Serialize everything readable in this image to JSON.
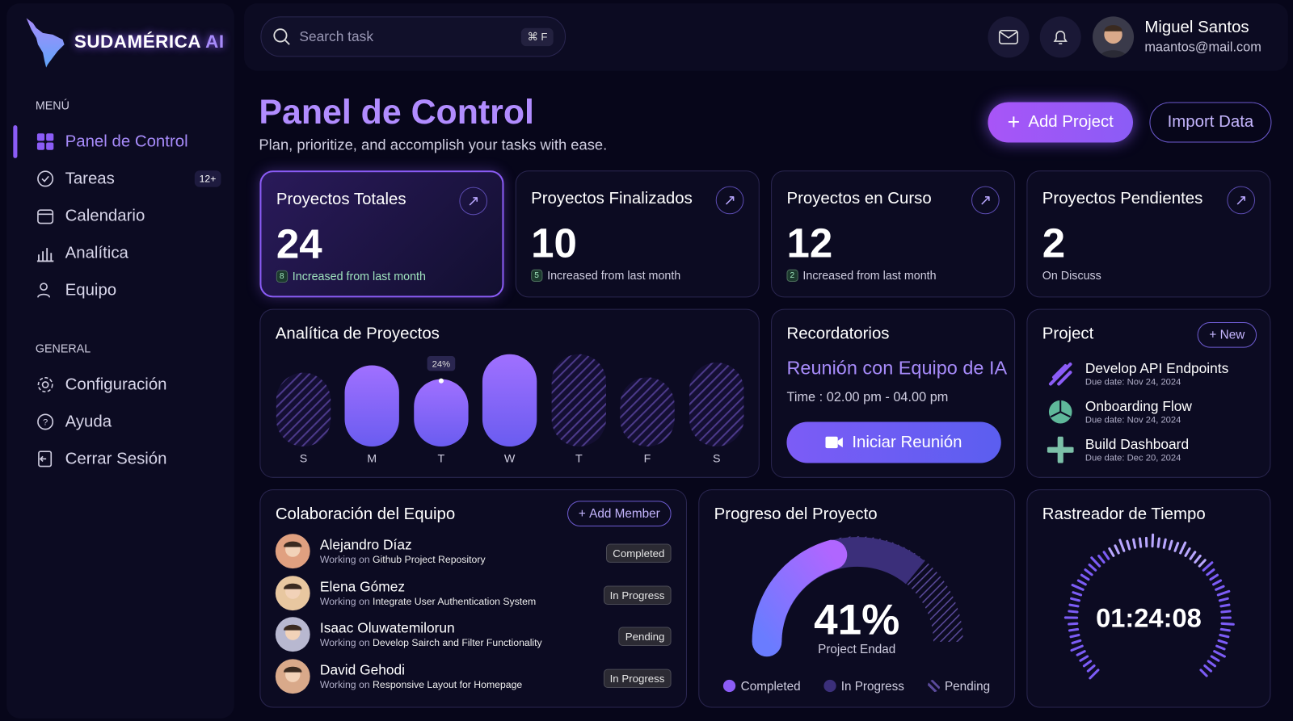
{
  "brand": {
    "name": "SUDAMÉRICA",
    "suffix": "AI"
  },
  "sidebar": {
    "menu_label": "MENÚ",
    "items": [
      {
        "label": "Panel de Control",
        "icon": "grid-icon",
        "active": true
      },
      {
        "label": "Tareas",
        "icon": "tasks-icon",
        "badge": "12+"
      },
      {
        "label": "Calendario",
        "icon": "calendar-icon"
      },
      {
        "label": "Analítica",
        "icon": "bar-chart-icon"
      },
      {
        "label": "Equipo",
        "icon": "users-icon"
      }
    ],
    "general_label": "GENERAL",
    "general": [
      {
        "label": "Configuración",
        "icon": "gear-icon"
      },
      {
        "label": "Ayuda",
        "icon": "help-icon"
      },
      {
        "label": "Cerrar Sesión",
        "icon": "logout-icon"
      }
    ]
  },
  "topbar": {
    "search_placeholder": "Search task",
    "shortcut": "⌘ F",
    "user": {
      "name": "Miguel Santos",
      "email": "maantos@mail.com"
    }
  },
  "header": {
    "title": "Panel de Control",
    "subtitle": "Plan, prioritize, and accomplish your tasks with ease.",
    "add_project": "Add Project",
    "import_data": "Import Data"
  },
  "stats": [
    {
      "title": "Proyectos Totales",
      "value": "24",
      "badge": "8",
      "note": "Increased from last month"
    },
    {
      "title": "Proyectos Finalizados",
      "value": "10",
      "badge": "5",
      "note": "Increased from last month"
    },
    {
      "title": "Proyectos en Curso",
      "value": "12",
      "badge": "2",
      "note": "Increased from last month"
    },
    {
      "title": "Proyectos Pendientes",
      "value": "2",
      "note": "On Discuss"
    }
  ],
  "analytics": {
    "title": "Analítica de Proyectos"
  },
  "chart_data": {
    "type": "bar",
    "categories": [
      "S",
      "M",
      "T",
      "W",
      "T",
      "F",
      "S"
    ],
    "values": [
      80,
      88,
      73,
      100,
      100,
      75,
      91
    ],
    "styles": [
      "hatched",
      "solid",
      "solid",
      "solid",
      "hatched",
      "hatched",
      "hatched"
    ],
    "annotations": [
      {
        "category_index": 2,
        "label": "24%"
      }
    ],
    "colors": {
      "solid": "#8b5cf6",
      "hatched": "#4c3a8a"
    },
    "grid": false
  },
  "reminders": {
    "title": "Recordatorios",
    "event": "Reunión con Equipo de IA",
    "time": "Time : 02.00 pm - 04.00 pm",
    "button": "Iniciar Reunión"
  },
  "projects": {
    "title": "Project",
    "new_label": "New",
    "items": [
      {
        "name": "Develop API Endpoints",
        "due": "Due date: Nov 24, 2024",
        "color": "#8b5cf6"
      },
      {
        "name": "Onboarding Flow",
        "due": "Due date: Nov 24, 2024",
        "color": "#5fb89a"
      },
      {
        "name": "Build Dashboard",
        "due": "Due date: Dec 20, 2024",
        "color": "#7cc0a8"
      }
    ]
  },
  "team": {
    "title": "Colaboración del Equipo",
    "add_member": "Add Member",
    "working_on": "Working on",
    "members": [
      {
        "name": "Alejandro Díaz",
        "task": "Github Project Repository",
        "status": "Completed"
      },
      {
        "name": "Elena Gómez",
        "task": "Integrate User Authentication System",
        "status": "In Progress"
      },
      {
        "name": "Isaac Oluwatemilorun",
        "task": "Develop Sairch and Filter Functionality",
        "status": "Pending"
      },
      {
        "name": "David Gehodi",
        "task": "Responsive Layout for Homepage",
        "status": "In Progress"
      }
    ]
  },
  "progress": {
    "title": "Progreso del Proyecto",
    "percent": 41,
    "percent_label": "41%",
    "caption": "Project Endad",
    "legend": [
      "Completed",
      "In Progress",
      "Pending"
    ],
    "colors": [
      "#8b5cf6",
      "#3b2f7a",
      "#5a4a9a"
    ]
  },
  "timer": {
    "title": "Rastreador de Tiempo",
    "time": "01:24:08"
  }
}
